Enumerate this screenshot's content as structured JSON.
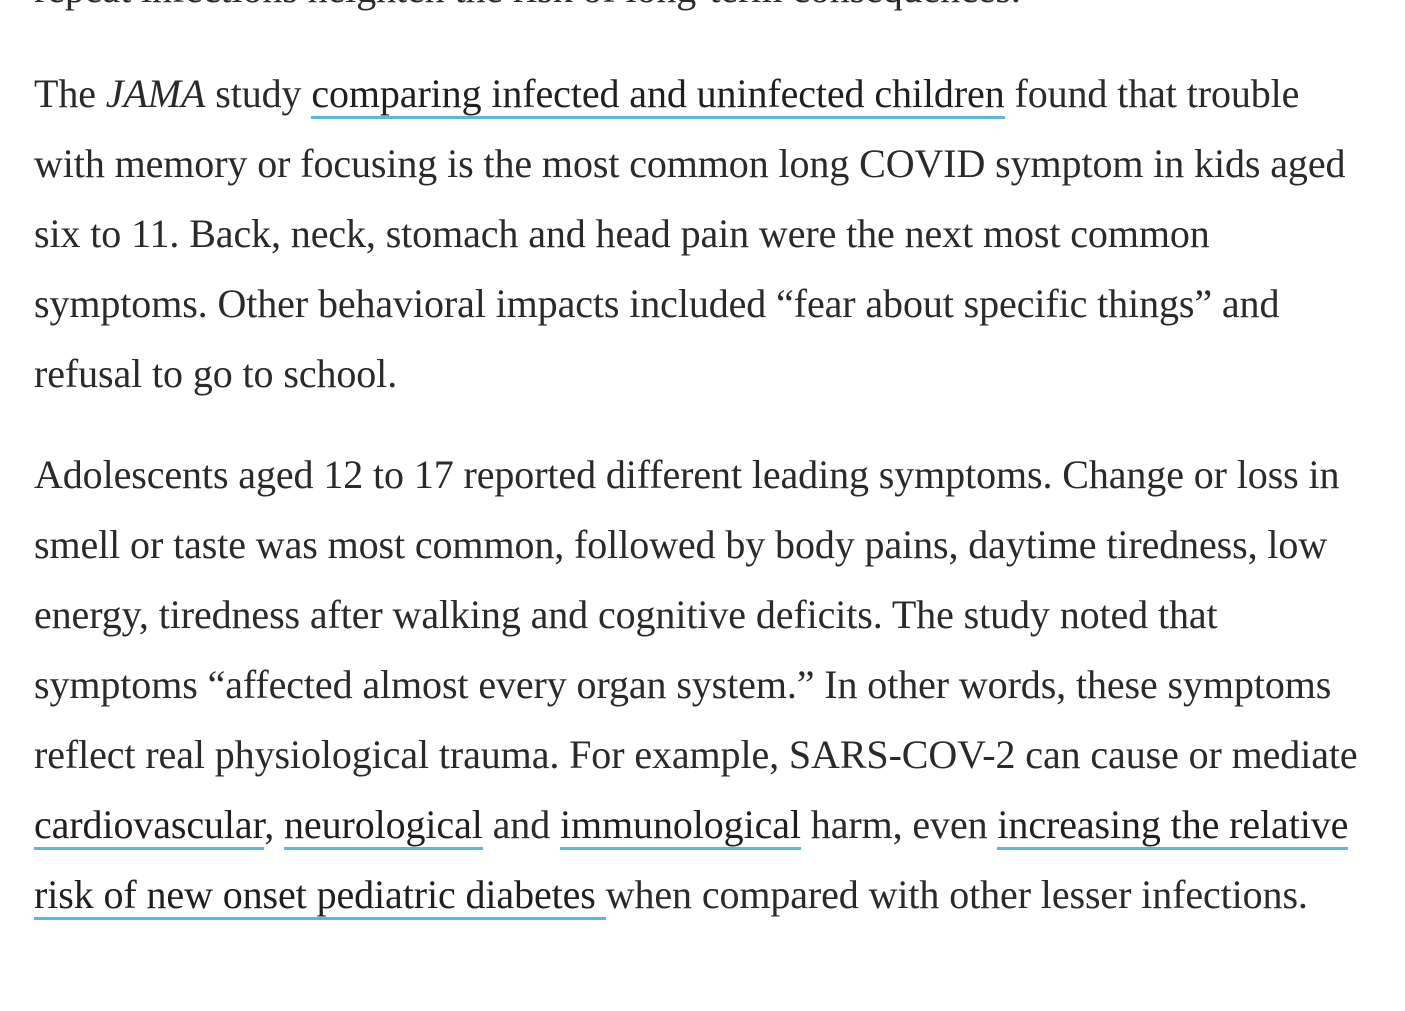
{
  "article": {
    "cut_line": "repeat infections heighten the risk of long-term consequences.",
    "para1": {
      "t1": "The ",
      "journal": "JAMA",
      "t2": " study ",
      "link1": "comparing infected and uninfected children",
      "t3": " found that trouble with memory or focusing is the most common long COVID symptom in kids aged six to 11. Back, neck, stomach and head pain were the next most common symptoms. Other behavioral impacts included “fear about specific things” and refusal to go to school."
    },
    "para2": {
      "t1": "Adolescents aged 12 to 17 reported different leading symptoms. Change or loss in smell or taste was most common, followed by body pains, daytime tiredness, low energy, tiredness after walking and cognitive deficits. The study noted that symptoms “affected almost every organ system.” In other words, these symptoms reflect real physiological trauma. For example, SARS-COV-2 can cause or mediate ",
      "link_cardio": "cardiovascular",
      "t2": ", ",
      "link_neuro": "neurological",
      "t3": " and ",
      "link_immuno": "immunological",
      "t4": " harm, even ",
      "link_diabetes": "increasing the relative risk of new onset pediatric diabetes ",
      "t5": "when compared with other lesser infections."
    }
  },
  "colors": {
    "text": "#2a2a2a",
    "link_underline": "#5bb8dc"
  }
}
